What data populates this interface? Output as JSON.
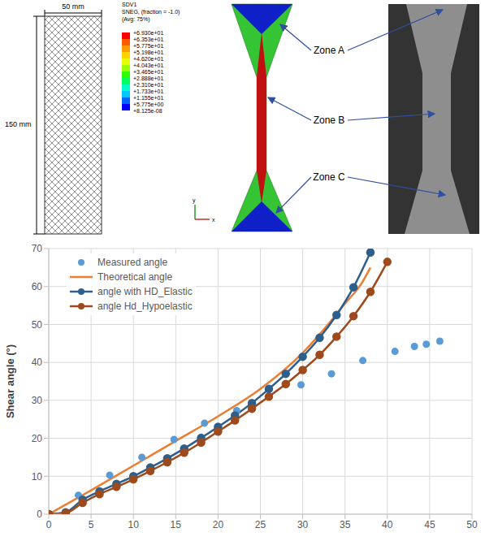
{
  "figure": {
    "width_label": "50 mm",
    "height_label": "150 mm",
    "colorbar": {
      "title": [
        "SDV1",
        "SNEG, (fraction = -1.0)",
        "(Avg: 75%)"
      ],
      "labels": [
        "+6.930e+01",
        "+6.353e+01",
        "+5.775e+01",
        "+5.198e+01",
        "+4.620e+01",
        "+4.043e+01",
        "+3.465e+01",
        "+2.888e+01",
        "+2.310e+01",
        "+1.733e+01",
        "+1.155e+01",
        "+5.775e+00",
        "+8.125e-08"
      ]
    },
    "axes_labels": [
      "y",
      "x"
    ],
    "zones": [
      "Zone A",
      "Zone B",
      "Zone C"
    ]
  },
  "chart_data": {
    "type": "line",
    "y_label": "Shear angle (°)",
    "xlim": [
      0,
      50
    ],
    "xticks": [
      0,
      5,
      10,
      15,
      20,
      25,
      30,
      35,
      40,
      45,
      50
    ],
    "ylim": [
      0,
      70
    ],
    "yticks": [
      0,
      10,
      20,
      30,
      40,
      50,
      60,
      70
    ],
    "grid": true,
    "legend": "top-left",
    "series": [
      {
        "name": "Measured angle",
        "type": "scatter",
        "color": "#5b9bd5",
        "marker": "circle",
        "line_style": "none",
        "x": [
          0,
          3.5,
          7.2,
          11,
          14.8,
          18.4,
          22.2,
          29.8,
          33.4,
          37.1,
          40.9,
          43.2,
          44.6,
          46.2
        ],
        "values": [
          0,
          5,
          10.3,
          15,
          19.7,
          24,
          27.3,
          34.1,
          37,
          40.5,
          42.9,
          44.2,
          44.8,
          45.6
        ]
      },
      {
        "name": "Theoretical angle",
        "type": "line",
        "color": "#ed7d31",
        "marker": "none",
        "line_style": "solid",
        "x": [
          0,
          5,
          10,
          15,
          20,
          25,
          30,
          33,
          35,
          37,
          38
        ],
        "values": [
          0,
          6.3,
          12.8,
          19.3,
          25.8,
          33,
          42.5,
          50,
          55.5,
          61,
          65
        ]
      },
      {
        "name": "angle with HD_Elastic",
        "type": "line",
        "color": "#2e5f8c",
        "marker": "circle",
        "line_style": "solid",
        "x": [
          0,
          2,
          4,
          6,
          8,
          10,
          12,
          14,
          16,
          18,
          20,
          22,
          24,
          26,
          28,
          30,
          32,
          34,
          36,
          38
        ],
        "values": [
          0,
          0.5,
          3.8,
          6,
          8,
          10,
          12.3,
          14.7,
          17.3,
          20.1,
          23,
          26,
          29.3,
          33,
          37,
          41.5,
          46.5,
          52.5,
          59.8,
          69
        ]
      },
      {
        "name": "angle Hd_Hypoelastic",
        "type": "line",
        "color": "#9e4a1c",
        "marker": "circle",
        "line_style": "solid",
        "x": [
          0,
          2,
          4,
          6,
          8,
          10,
          12,
          14,
          16,
          18,
          20,
          22,
          24,
          26,
          28,
          30,
          32,
          34,
          36,
          38,
          40
        ],
        "values": [
          0,
          0.3,
          3,
          5.3,
          7.2,
          9.2,
          11.4,
          13.7,
          16.2,
          18.9,
          21.8,
          24.7,
          27.8,
          31,
          34.3,
          38,
          42,
          46.8,
          52.2,
          58.6,
          66.5
        ]
      }
    ]
  }
}
